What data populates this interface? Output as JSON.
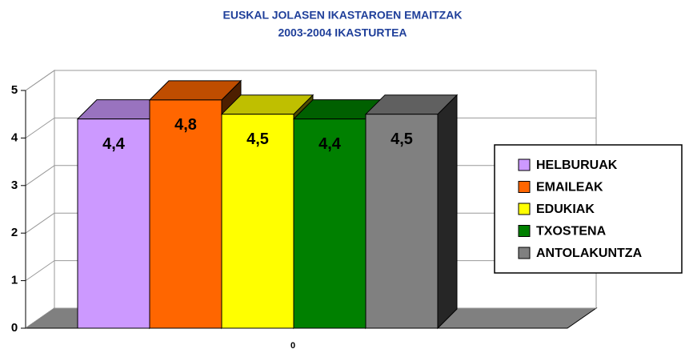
{
  "chart_data": {
    "type": "bar3d",
    "title": "EUSKAL JOLASEN IKASTAROEN EMAITZAK",
    "subtitle": "2003-2004 IKASTURTEA",
    "categories": [
      "0"
    ],
    "series": [
      {
        "name": "HELBURUAK",
        "color": "#cc99ff",
        "values": [
          4.4
        ],
        "value_labels": [
          "4,4"
        ]
      },
      {
        "name": "EMAILEAK",
        "color": "#ff6600",
        "values": [
          4.8
        ],
        "value_labels": [
          "4,8"
        ]
      },
      {
        "name": "EDUKIAK",
        "color": "#ffff00",
        "values": [
          4.5
        ],
        "value_labels": [
          "4,5"
        ]
      },
      {
        "name": "TXOSTENA",
        "color": "#008000",
        "values": [
          4.4
        ],
        "value_labels": [
          "4,4"
        ]
      },
      {
        "name": "ANTOLAKUNTZA",
        "color": "#808080",
        "values": [
          4.5
        ],
        "value_labels": [
          "4,5"
        ]
      }
    ],
    "ylim": [
      0,
      5
    ],
    "yticks": [
      0,
      1,
      2,
      3,
      4,
      5
    ],
    "grid": true,
    "legend": "right"
  }
}
